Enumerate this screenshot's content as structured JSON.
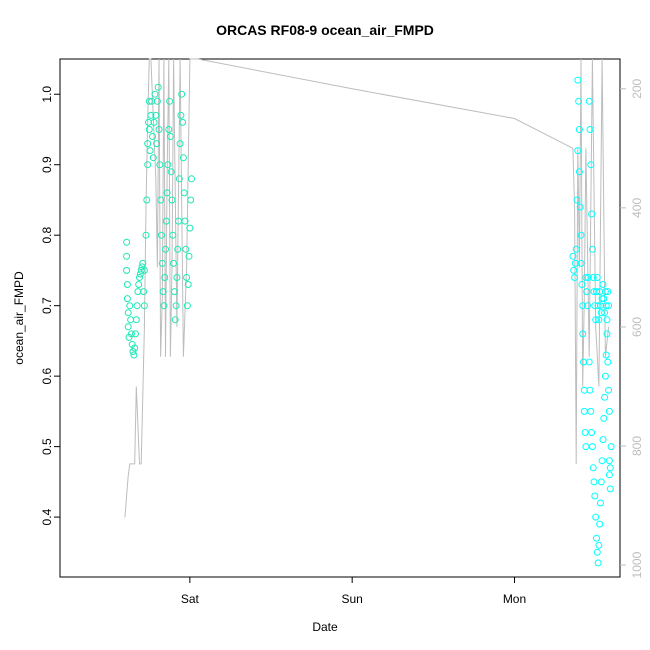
{
  "chart_data": {
    "type": "scatter",
    "title": "ORCAS RF08-9 ocean_air_FMPD",
    "xlabel": "Date",
    "ylabel": "ocean_air_FMPD",
    "x_ticks": [
      "Sat",
      "Sun",
      "Mon"
    ],
    "y_ticks": [
      "0.4",
      "0.5",
      "0.6",
      "0.7",
      "0.8",
      "0.9",
      "1.0"
    ],
    "y_right_ticks": [
      "200",
      "400",
      "600",
      "800",
      "1000"
    ],
    "ylim": [
      0.315,
      1.05
    ],
    "y_right_lim": [
      1020,
      150
    ],
    "x_axis_note": "x in days after Friday 00:00",
    "grid": false,
    "colors": {
      "points_first_flight": "#1de9b6",
      "points_second_flight": "#00ffff",
      "pressure_line": "#bdbdbd",
      "axis": "#000000",
      "right_axis": "#bdbdbd"
    },
    "series": [
      {
        "marker": "open-circle",
        "color": "#1de9b6",
        "points_sat": [
          [
            0.61,
            0.79
          ],
          [
            0.61,
            0.77
          ],
          [
            0.61,
            0.75
          ],
          [
            0.615,
            0.73
          ],
          [
            0.615,
            0.71
          ],
          [
            0.62,
            0.69
          ],
          [
            0.62,
            0.67
          ],
          [
            0.625,
            0.655
          ],
          [
            0.63,
            0.7
          ],
          [
            0.635,
            0.68
          ],
          [
            0.64,
            0.66
          ],
          [
            0.645,
            0.645
          ],
          [
            0.65,
            0.635
          ],
          [
            0.655,
            0.63
          ],
          [
            0.66,
            0.64
          ],
          [
            0.665,
            0.66
          ],
          [
            0.67,
            0.68
          ],
          [
            0.675,
            0.7
          ],
          [
            0.68,
            0.72
          ],
          [
            0.685,
            0.73
          ],
          [
            0.69,
            0.74
          ],
          [
            0.695,
            0.745
          ],
          [
            0.7,
            0.75
          ],
          [
            0.705,
            0.755
          ],
          [
            0.71,
            0.76
          ],
          [
            0.715,
            0.72
          ],
          [
            0.72,
            0.7
          ],
          [
            0.72,
            0.75
          ],
          [
            0.73,
            0.8
          ],
          [
            0.735,
            0.85
          ],
          [
            0.74,
            0.9
          ],
          [
            0.74,
            0.93
          ],
          [
            0.745,
            0.96
          ],
          [
            0.75,
            0.99
          ],
          [
            0.75,
            0.95
          ],
          [
            0.755,
            0.92
          ],
          [
            0.76,
            0.97
          ],
          [
            0.765,
            0.99
          ],
          [
            0.77,
            0.94
          ],
          [
            0.775,
            0.91
          ],
          [
            0.78,
            0.96
          ],
          [
            0.785,
            1.0
          ],
          [
            0.79,
            0.97
          ],
          [
            0.795,
            0.93
          ],
          [
            0.8,
            0.99
          ],
          [
            0.805,
            1.01
          ],
          [
            0.81,
            0.95
          ],
          [
            0.815,
            0.9
          ],
          [
            0.82,
            0.85
          ],
          [
            0.825,
            0.8
          ],
          [
            0.83,
            0.76
          ],
          [
            0.835,
            0.72
          ],
          [
            0.84,
            0.7
          ],
          [
            0.845,
            0.74
          ],
          [
            0.85,
            0.78
          ],
          [
            0.855,
            0.82
          ],
          [
            0.86,
            0.86
          ],
          [
            0.865,
            0.9
          ],
          [
            0.87,
            0.95
          ],
          [
            0.875,
            0.99
          ],
          [
            0.88,
            0.94
          ],
          [
            0.885,
            0.89
          ],
          [
            0.89,
            0.85
          ],
          [
            0.895,
            0.8
          ],
          [
            0.9,
            0.76
          ],
          [
            0.905,
            0.72
          ],
          [
            0.91,
            0.68
          ],
          [
            0.915,
            0.7
          ],
          [
            0.92,
            0.74
          ],
          [
            0.925,
            0.78
          ],
          [
            0.93,
            0.82
          ],
          [
            0.935,
            0.88
          ],
          [
            0.94,
            0.93
          ],
          [
            0.945,
            0.97
          ],
          [
            0.95,
            1.0
          ],
          [
            0.955,
            0.96
          ],
          [
            0.96,
            0.91
          ],
          [
            0.965,
            0.86
          ],
          [
            0.97,
            0.82
          ],
          [
            0.975,
            0.78
          ],
          [
            0.98,
            0.74
          ],
          [
            0.985,
            0.7
          ],
          [
            0.99,
            0.73
          ],
          [
            0.995,
            0.77
          ],
          [
            1.0,
            0.81
          ],
          [
            1.005,
            0.85
          ],
          [
            1.01,
            0.88
          ]
        ],
        "points_mon": [
          [
            3.36,
            0.77
          ],
          [
            3.365,
            0.75
          ],
          [
            3.37,
            0.74
          ],
          [
            3.375,
            0.76
          ],
          [
            3.38,
            0.78
          ],
          [
            3.385,
            0.85
          ],
          [
            3.39,
            0.92
          ],
          [
            3.39,
            1.02
          ],
          [
            3.395,
            0.99
          ],
          [
            3.4,
            0.95
          ],
          [
            3.4,
            0.89
          ],
          [
            3.405,
            0.84
          ],
          [
            3.41,
            0.8
          ],
          [
            3.41,
            0.76
          ],
          [
            3.415,
            0.73
          ],
          [
            3.42,
            0.7
          ],
          [
            3.42,
            0.66
          ],
          [
            3.425,
            0.62
          ],
          [
            3.43,
            0.58
          ],
          [
            3.43,
            0.55
          ],
          [
            3.435,
            0.52
          ],
          [
            3.44,
            0.5
          ],
          [
            3.44,
            0.74
          ],
          [
            3.445,
            0.72
          ],
          [
            3.45,
            0.7
          ],
          [
            3.455,
            0.74
          ],
          [
            3.46,
            0.99
          ],
          [
            3.465,
            0.95
          ],
          [
            3.47,
            0.9
          ],
          [
            3.475,
            0.83
          ],
          [
            3.48,
            0.78
          ],
          [
            3.485,
            0.74
          ],
          [
            3.49,
            0.72
          ],
          [
            3.495,
            0.7
          ],
          [
            3.5,
            0.68
          ],
          [
            3.505,
            0.72
          ],
          [
            3.51,
            0.74
          ],
          [
            3.515,
            0.7
          ],
          [
            3.52,
            0.68
          ],
          [
            3.525,
            0.72
          ],
          [
            3.53,
            0.7
          ],
          [
            3.535,
            0.69
          ],
          [
            3.54,
            0.71
          ],
          [
            3.545,
            0.73
          ],
          [
            3.55,
            0.71
          ],
          [
            3.555,
            0.69
          ],
          [
            3.56,
            0.72
          ],
          [
            3.565,
            0.7
          ],
          [
            3.57,
            0.68
          ],
          [
            3.575,
            0.72
          ],
          [
            3.58,
            0.7
          ],
          [
            3.585,
            0.48
          ],
          [
            3.585,
            0.46
          ],
          [
            3.59,
            0.44
          ],
          [
            3.59,
            0.47
          ],
          [
            3.595,
            0.5
          ],
          [
            3.46,
            0.62
          ],
          [
            3.465,
            0.58
          ],
          [
            3.47,
            0.55
          ],
          [
            3.475,
            0.52
          ],
          [
            3.48,
            0.5
          ],
          [
            3.485,
            0.47
          ],
          [
            3.49,
            0.45
          ],
          [
            3.495,
            0.43
          ],
          [
            3.5,
            0.4
          ],
          [
            3.505,
            0.37
          ],
          [
            3.51,
            0.35
          ],
          [
            3.515,
            0.335
          ],
          [
            3.52,
            0.36
          ],
          [
            3.525,
            0.39
          ],
          [
            3.53,
            0.42
          ],
          [
            3.535,
            0.45
          ],
          [
            3.54,
            0.48
          ],
          [
            3.545,
            0.51
          ],
          [
            3.55,
            0.54
          ],
          [
            3.555,
            0.57
          ],
          [
            3.56,
            0.6
          ],
          [
            3.565,
            0.63
          ],
          [
            3.57,
            0.66
          ],
          [
            3.575,
            0.62
          ],
          [
            3.58,
            0.58
          ],
          [
            3.585,
            0.55
          ]
        ]
      }
    ],
    "pressure_series": {
      "color": "#bdbdbd",
      "points": [
        [
          0.6,
          920
        ],
        [
          0.62,
          850
        ],
        [
          0.63,
          830
        ],
        [
          0.66,
          830
        ],
        [
          0.67,
          700
        ],
        [
          0.69,
          830
        ],
        [
          0.7,
          830
        ],
        [
          0.72,
          600
        ],
        [
          0.73,
          400
        ],
        [
          0.74,
          250
        ],
        [
          0.75,
          150
        ],
        [
          0.76,
          150
        ],
        [
          0.79,
          350
        ],
        [
          0.8,
          500
        ],
        [
          0.81,
          150
        ],
        [
          0.82,
          650
        ],
        [
          0.83,
          550
        ],
        [
          0.84,
          150
        ],
        [
          0.85,
          650
        ],
        [
          0.86,
          350
        ],
        [
          0.87,
          150
        ],
        [
          0.88,
          650
        ],
        [
          0.89,
          500
        ],
        [
          0.9,
          150
        ],
        [
          0.92,
          600
        ],
        [
          0.94,
          150
        ],
        [
          0.96,
          650
        ],
        [
          0.98,
          500
        ],
        [
          1.0,
          150
        ],
        [
          1.02,
          150
        ],
        [
          1.05,
          150
        ],
        [
          2.0,
          200
        ],
        [
          3.0,
          250
        ],
        [
          3.36,
          300
        ],
        [
          3.37,
          400
        ],
        [
          3.38,
          830
        ],
        [
          3.39,
          300
        ],
        [
          3.4,
          500
        ],
        [
          3.41,
          150
        ],
        [
          3.42,
          700
        ],
        [
          3.43,
          550
        ],
        [
          3.44,
          300
        ],
        [
          3.46,
          650
        ],
        [
          3.48,
          150
        ],
        [
          3.5,
          600
        ],
        [
          3.52,
          700
        ],
        [
          3.54,
          150
        ],
        [
          3.56,
          650
        ],
        [
          3.58,
          600
        ]
      ]
    },
    "xlim": [
      0.2,
      3.65
    ]
  }
}
